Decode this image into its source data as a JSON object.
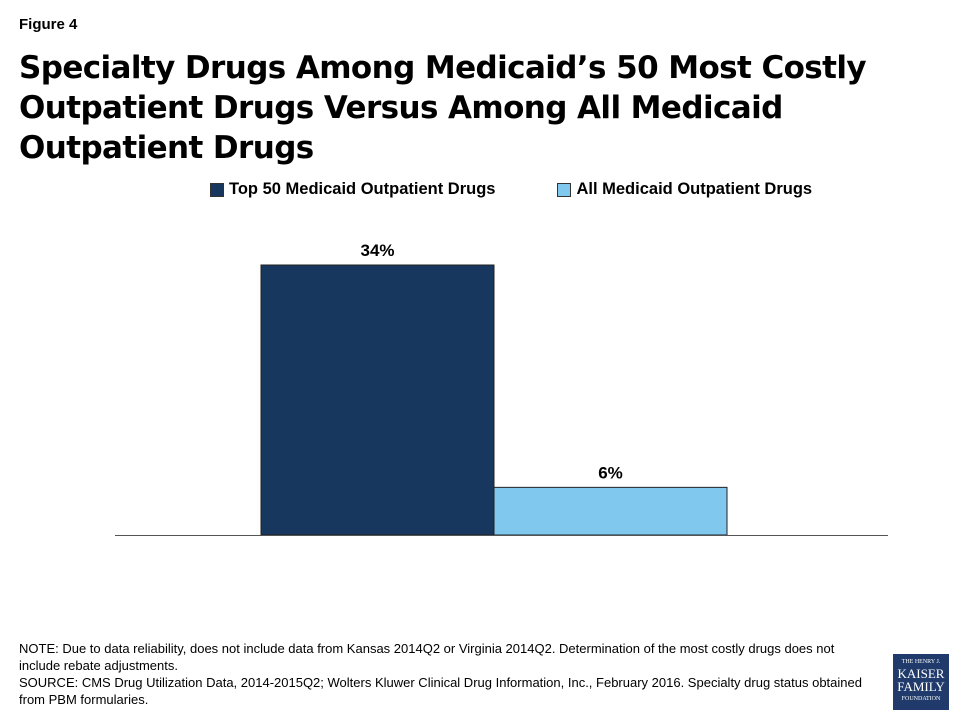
{
  "figure_label": "Figure 4",
  "title": "Specialty Drugs Among Medicaid’s 50 Most Costly Outpatient Drugs Versus Among All Medicaid Outpatient Drugs",
  "chart_data": {
    "type": "bar",
    "title": "Specialty Drugs Among Medicaid’s 50 Most Costly Outpatient Drugs Versus Among All Medicaid Outpatient Drugs",
    "categories": [
      ""
    ],
    "series": [
      {
        "name": "Top 50 Medicaid Outpatient Drugs",
        "values": [
          34
        ],
        "label": "34%",
        "color": "#17375e"
      },
      {
        "name": "All Medicaid Outpatient Drugs",
        "values": [
          6
        ],
        "label": "6%",
        "color": "#80c8ed"
      }
    ],
    "ylim": [
      0,
      40
    ],
    "grid": false,
    "legend": "top",
    "xlabel": "",
    "ylabel": ""
  },
  "notes": {
    "note": "NOTE: Due to data reliability, does not include data from Kansas 2014Q2 or Virginia 2014Q2. Determination of the most costly drugs does not include rebate adjustments.",
    "source": "SOURCE: CMS Drug Utilization Data, 2014-2015Q2; Wolters Kluwer Clinical Drug Information, Inc., February 2016. Specialty drug status obtained from PBM formularies."
  },
  "logo": {
    "line1": "THE HENRY J.",
    "line2": "KAISER",
    "line3": "FAMILY",
    "line4": "FOUNDATION"
  }
}
